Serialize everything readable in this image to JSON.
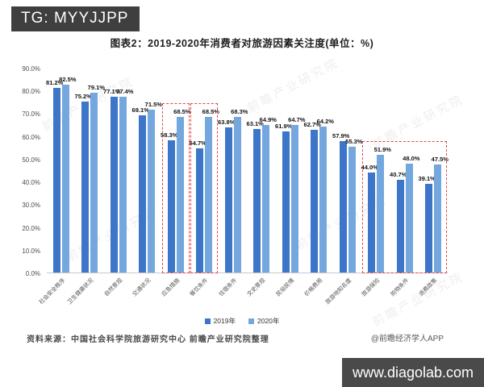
{
  "overlay": {
    "tag": "TG: MYYJJPP",
    "site": "www.diagolab.com"
  },
  "title": "图表2：2019-2020年消费者对旅游因素关注度(单位：%)",
  "chart_data": {
    "type": "bar",
    "categories": [
      "社会安全秩序",
      "卫生健康状况",
      "自然景观",
      "交通状况",
      "应急措施",
      "餐饮条件",
      "住宿条件",
      "文史景观",
      "民俗民情",
      "价格费用",
      "旅游地知名度",
      "旅游保险",
      "购物条件",
      "退费政策"
    ],
    "series": [
      {
        "name": "2019年",
        "color": "#3d76c8",
        "values": [
          81.2,
          75.2,
          77.1,
          69.1,
          58.3,
          54.7,
          63.8,
          63.1,
          61.9,
          62.7,
          57.9,
          44.0,
          40.7,
          39.1
        ]
      },
      {
        "name": "2020年",
        "color": "#74a7dd",
        "values": [
          82.5,
          79.1,
          77.4,
          71.5,
          68.5,
          68.5,
          68.3,
          64.9,
          64.7,
          64.2,
          55.3,
          51.9,
          48.0,
          47.5
        ]
      }
    ],
    "ylim": [
      0,
      90
    ],
    "yticks": [
      "90.0%",
      "80.0%",
      "70.0%",
      "60.0%",
      "50.0%",
      "40.0%",
      "30.0%",
      "20.0%",
      "10.0%",
      "0.0%"
    ],
    "grid": false,
    "legend_position": "bottom",
    "highlight_color": "#e14b4b",
    "highlight_boxes": [
      {
        "from": 4,
        "to": 4
      },
      {
        "from": 5,
        "to": 5
      },
      {
        "from": 11,
        "to": 13
      }
    ]
  },
  "footer": {
    "source": "资料来源：中国社会科学院旅游研究中心 前瞻产业研究院整理",
    "credit": "@前瞻经济学人APP"
  },
  "watermark": "前瞻产业研究院"
}
